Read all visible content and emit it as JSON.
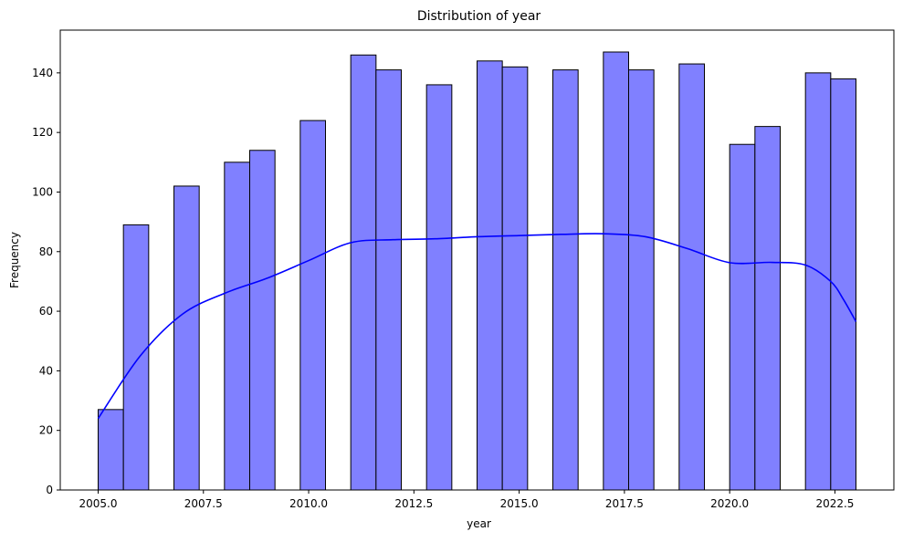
{
  "chart_data": {
    "type": "bar",
    "title": "Distribution of year",
    "xlabel": "year",
    "ylabel": "Frequency",
    "xlim": [
      2004.1,
      2023.9
    ],
    "ylim": [
      0,
      154.35
    ],
    "xticks": [
      2005.0,
      2007.5,
      2010.0,
      2012.5,
      2015.0,
      2017.5,
      2020.0,
      2022.5
    ],
    "xtick_labels": [
      "2005.0",
      "2007.5",
      "2010.0",
      "2012.5",
      "2015.0",
      "2017.5",
      "2020.0",
      "2022.5"
    ],
    "yticks": [
      0,
      20,
      40,
      60,
      80,
      100,
      120,
      140
    ],
    "ytick_labels": [
      "0",
      "20",
      "40",
      "60",
      "80",
      "100",
      "120",
      "140"
    ],
    "bin_edges": [
      2005.0,
      2005.6,
      2006.2,
      2006.8,
      2007.4,
      2008.0,
      2008.6,
      2009.2,
      2009.8,
      2010.4,
      2011.0,
      2011.6,
      2012.2,
      2012.8,
      2013.4,
      2014.0,
      2014.6,
      2015.2,
      2015.8,
      2016.4,
      2017.0,
      2017.6,
      2018.2,
      2018.8,
      2019.4,
      2020.0,
      2020.6,
      2021.2,
      2021.8,
      2022.4,
      2023.0
    ],
    "values": [
      27,
      89,
      0,
      102,
      0,
      110,
      114,
      0,
      124,
      0,
      146,
      141,
      0,
      136,
      0,
      144,
      142,
      0,
      141,
      0,
      147,
      141,
      0,
      143,
      0,
      116,
      122,
      0,
      140,
      138
    ],
    "kde": {
      "x": [
        2005.0,
        2006.0,
        2007.0,
        2008.0,
        2009.0,
        2010.0,
        2011.0,
        2012.0,
        2013.0,
        2014.0,
        2015.0,
        2016.0,
        2017.0,
        2018.0,
        2019.0,
        2020.0,
        2021.0,
        2021.8,
        2022.4,
        2022.7,
        2023.0
      ],
      "y": [
        24,
        45,
        59,
        66,
        71,
        77,
        83,
        84,
        84.3,
        85,
        85.4,
        85.8,
        86,
        85,
        81,
        76.3,
        76.4,
        75.5,
        70,
        64,
        56.5
      ]
    },
    "colors": {
      "bar_fill": "#8080ff",
      "bar_edge": "#000000",
      "kde_line": "#0000ff",
      "axis": "#000000"
    },
    "grid": false
  }
}
